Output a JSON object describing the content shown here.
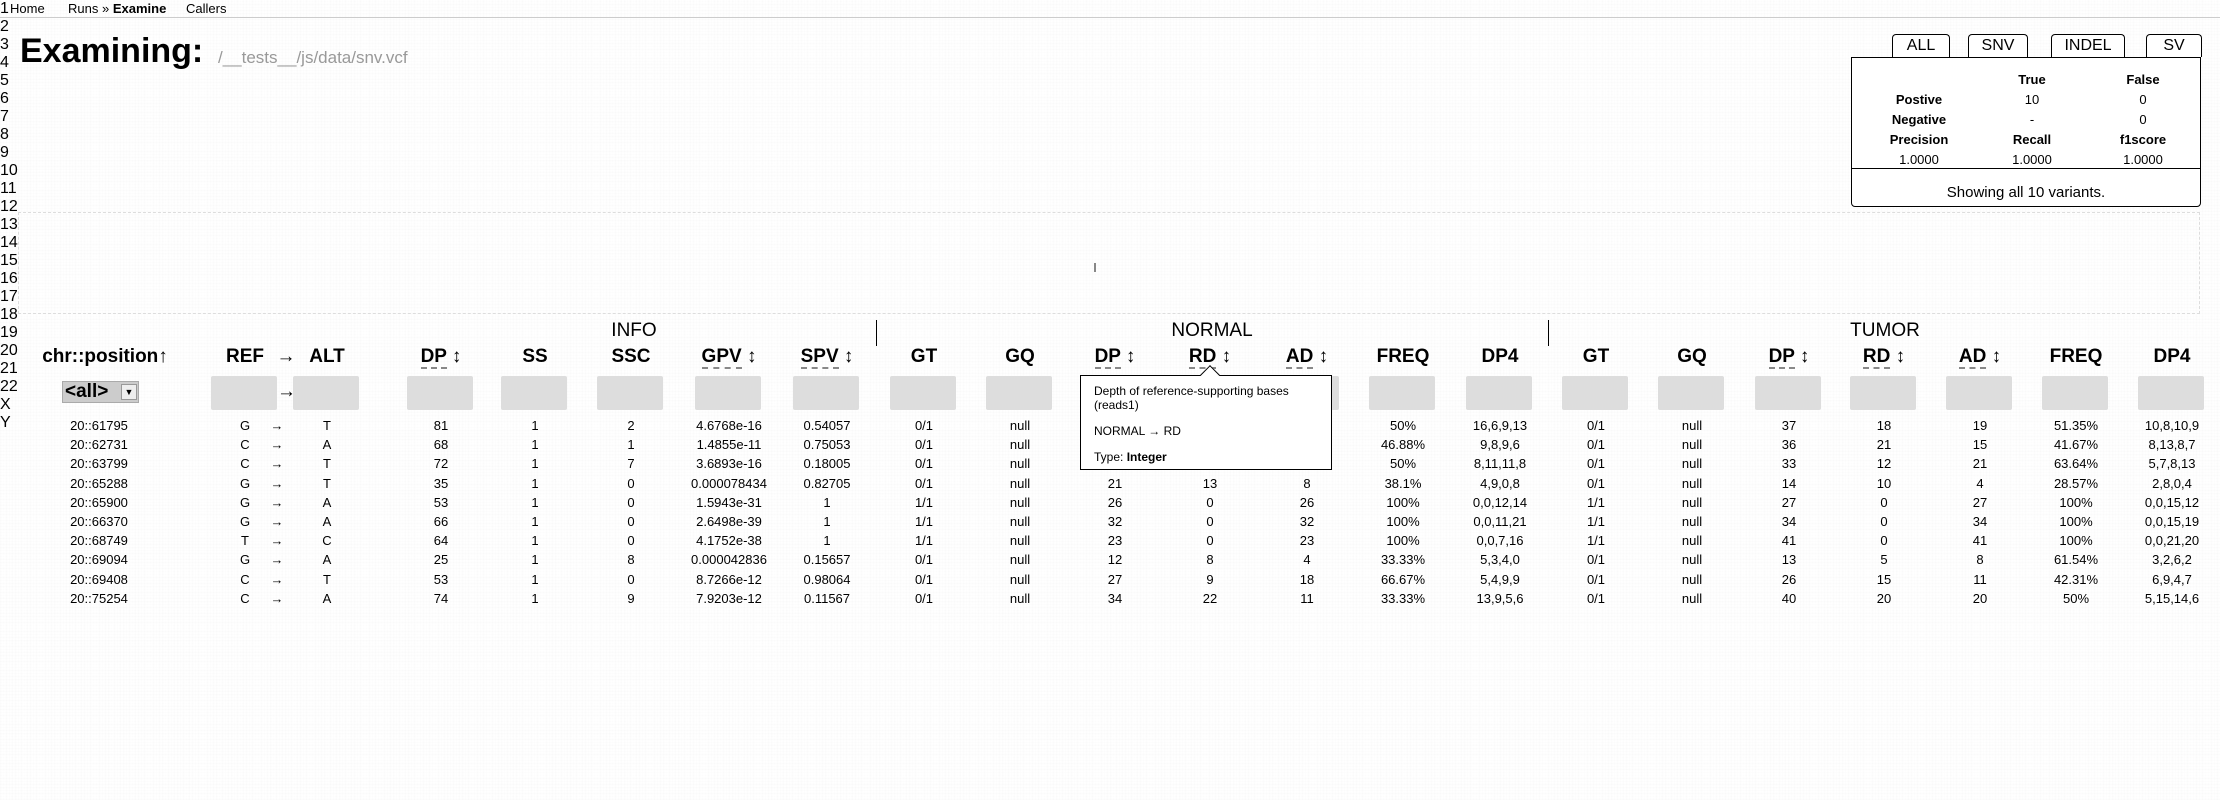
{
  "nav": {
    "home": "Home",
    "runs": "Runs",
    "sep": " » ",
    "examine": "Examine",
    "callers": "Callers"
  },
  "heading": {
    "title": "Examining:",
    "path": "/__tests__/js/data/snv.vcf"
  },
  "tabs": [
    "ALL",
    "SNV",
    "INDEL",
    "SV"
  ],
  "stats": {
    "col_true": "True",
    "col_false": "False",
    "positive_label": "Postive",
    "positive_true": "10",
    "positive_false": "0",
    "negative_label": "Negative",
    "negative_true": "-",
    "negative_false": "0",
    "precision_label": "Precision",
    "recall_label": "Recall",
    "f1_label": "f1score",
    "precision": "1.0000",
    "recall": "1.0000",
    "f1": "1.0000",
    "showing": "Showing all 10 variants."
  },
  "chromosomes": [
    "1",
    "2",
    "3",
    "4",
    "5",
    "6",
    "7",
    "8",
    "9",
    "10",
    "11",
    "12",
    "13",
    "14",
    "15",
    "16",
    "17",
    "18",
    "19",
    "20",
    "21",
    "22",
    "X",
    "Y"
  ],
  "groups": {
    "info": "INFO",
    "normal": "NORMAL",
    "tumor": "TUMOR"
  },
  "columns": {
    "pos": "chr::position",
    "pos_sort": "↑",
    "ref": "REF",
    "arrow": "→",
    "alt": "ALT",
    "dp": "DP",
    "ss": "SS",
    "ssc": "SSC",
    "gpv": "GPV",
    "spv": "SPV",
    "gt": "GT",
    "gq": "GQ",
    "rd": "RD",
    "ad": "AD",
    "freq": "FREQ",
    "dp4": "DP4",
    "sort_icon": "↕"
  },
  "filter": {
    "position": "<all>",
    "arrow": "→"
  },
  "tooltip": {
    "description": "Depth of reference-supporting bases (reads1)",
    "path": "NORMAL → RD",
    "type_label": "Type:",
    "type_value": "Integer"
  },
  "rows": [
    [
      "20::61795",
      "G",
      "→",
      "T",
      "81",
      "1",
      "2",
      "4.6768e-16",
      "0.54057",
      "0/1",
      "null",
      "",
      "",
      "",
      "50%",
      "16,6,9,13",
      "0/1",
      "null",
      "37",
      "18",
      "19",
      "51.35%",
      "10,8,10,9"
    ],
    [
      "20::62731",
      "C",
      "→",
      "A",
      "68",
      "1",
      "1",
      "1.4855e-11",
      "0.75053",
      "0/1",
      "null",
      "",
      "",
      "",
      "46.88%",
      "9,8,9,6",
      "0/1",
      "null",
      "36",
      "21",
      "15",
      "41.67%",
      "8,13,8,7"
    ],
    [
      "20::63799",
      "C",
      "→",
      "T",
      "72",
      "1",
      "7",
      "3.6893e-16",
      "0.18005",
      "0/1",
      "null",
      "",
      "",
      "",
      "50%",
      "8,11,11,8",
      "0/1",
      "null",
      "33",
      "12",
      "21",
      "63.64%",
      "5,7,8,13"
    ],
    [
      "20::65288",
      "G",
      "→",
      "T",
      "35",
      "1",
      "0",
      "0.000078434",
      "0.82705",
      "0/1",
      "null",
      "21",
      "13",
      "8",
      "38.1%",
      "4,9,0,8",
      "0/1",
      "null",
      "14",
      "10",
      "4",
      "28.57%",
      "2,8,0,4"
    ],
    [
      "20::65900",
      "G",
      "→",
      "A",
      "53",
      "1",
      "0",
      "1.5943e-31",
      "1",
      "1/1",
      "null",
      "26",
      "0",
      "26",
      "100%",
      "0,0,12,14",
      "1/1",
      "null",
      "27",
      "0",
      "27",
      "100%",
      "0,0,15,12"
    ],
    [
      "20::66370",
      "G",
      "→",
      "A",
      "66",
      "1",
      "0",
      "2.6498e-39",
      "1",
      "1/1",
      "null",
      "32",
      "0",
      "32",
      "100%",
      "0,0,11,21",
      "1/1",
      "null",
      "34",
      "0",
      "34",
      "100%",
      "0,0,15,19"
    ],
    [
      "20::68749",
      "T",
      "→",
      "C",
      "64",
      "1",
      "0",
      "4.1752e-38",
      "1",
      "1/1",
      "null",
      "23",
      "0",
      "23",
      "100%",
      "0,0,7,16",
      "1/1",
      "null",
      "41",
      "0",
      "41",
      "100%",
      "0,0,21,20"
    ],
    [
      "20::69094",
      "G",
      "→",
      "A",
      "25",
      "1",
      "8",
      "0.000042836",
      "0.15657",
      "0/1",
      "null",
      "12",
      "8",
      "4",
      "33.33%",
      "5,3,4,0",
      "0/1",
      "null",
      "13",
      "5",
      "8",
      "61.54%",
      "3,2,6,2"
    ],
    [
      "20::69408",
      "C",
      "→",
      "T",
      "53",
      "1",
      "0",
      "8.7266e-12",
      "0.98064",
      "0/1",
      "null",
      "27",
      "9",
      "18",
      "66.67%",
      "5,4,9,9",
      "0/1",
      "null",
      "26",
      "15",
      "11",
      "42.31%",
      "6,9,4,7"
    ],
    [
      "20::75254",
      "C",
      "→",
      "A",
      "74",
      "1",
      "9",
      "7.9203e-12",
      "0.11567",
      "0/1",
      "null",
      "34",
      "22",
      "11",
      "33.33%",
      "13,9,5,6",
      "0/1",
      "null",
      "40",
      "20",
      "20",
      "50%",
      "5,15,14,6"
    ]
  ],
  "colors": {
    "filter_bg": "#dddddd",
    "border": "#000000",
    "muted_text": "#999999"
  }
}
